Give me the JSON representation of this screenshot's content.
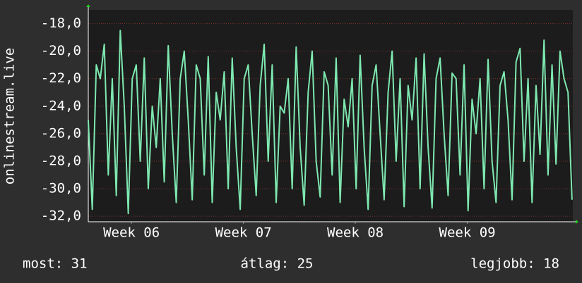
{
  "chart_data": {
    "type": "line",
    "y_label": "onlinestream.live",
    "x": [
      0,
      0.25,
      0.5,
      0.75,
      1,
      1.25,
      1.5,
      1.75,
      2,
      2.25,
      2.5,
      2.75,
      3,
      3.25,
      3.5,
      3.75,
      4,
      4.25,
      4.5,
      4.75,
      5,
      5.25,
      5.5,
      5.75,
      6,
      6.25,
      6.5,
      6.75,
      7,
      7.25,
      7.5,
      7.75,
      8,
      8.25,
      8.5,
      8.75,
      9,
      9.25,
      9.5,
      9.75,
      10,
      10.25,
      10.5,
      10.75,
      11,
      11.25,
      11.5,
      11.75,
      12,
      12.25,
      12.5,
      12.75,
      13,
      13.25,
      13.5,
      13.75,
      14,
      14.25,
      14.5,
      14.75,
      15,
      15.25,
      15.5,
      15.75,
      16,
      16.25,
      16.5,
      16.75,
      17,
      17.25,
      17.5,
      17.75,
      18,
      18.25,
      18.5,
      18.75,
      19,
      19.25,
      19.5,
      19.75,
      20,
      20.25,
      20.5,
      20.75,
      21,
      21.25,
      21.5,
      21.75,
      22,
      22.25,
      22.5,
      22.75,
      23,
      23.25,
      23.5,
      23.75,
      24,
      24.25,
      24.5,
      24.75,
      25,
      25.25,
      25.5,
      25.75,
      26,
      26.25,
      26.5,
      26.75,
      27,
      27.25,
      27.5,
      27.75,
      28,
      28.25,
      28.5,
      28.75,
      29,
      29.25,
      29.5,
      29.75,
      30,
      30.25
    ],
    "series": [
      {
        "name": "onlinestream.live",
        "color": "#7ee8b0",
        "values": [
          -25,
          -31.5,
          -21,
          -22,
          -19.5,
          -29,
          -22,
          -30.5,
          -18.5,
          -24,
          -31.8,
          -22,
          -21,
          -28,
          -20.5,
          -30,
          -24,
          -27,
          -22,
          -29.5,
          -19.6,
          -26,
          -31,
          -22,
          -20,
          -25,
          -30.8,
          -21,
          -22,
          -29,
          -20.4,
          -31,
          -23,
          -25,
          -21.5,
          -30,
          -20.5,
          -27,
          -31.5,
          -22,
          -21,
          -26,
          -30.5,
          -22.5,
          -19.5,
          -28,
          -21,
          -31,
          -24,
          -24.5,
          -22,
          -30,
          -19.7,
          -27,
          -31.2,
          -23,
          -20,
          -28,
          -30.6,
          -21.5,
          -22.5,
          -29,
          -20.5,
          -31,
          -23.5,
          -25.5,
          -22,
          -30,
          -20.3,
          -27,
          -31.5,
          -22.5,
          -21,
          -26,
          -30.8,
          -23,
          -20,
          -28,
          -22,
          -31.3,
          -22.5,
          -25,
          -20.5,
          -30,
          -20.2,
          -27,
          -31.4,
          -22,
          -20.5,
          -26,
          -30.5,
          -21.6,
          -22,
          -29,
          -21,
          -31.6,
          -23.5,
          -26,
          -22,
          -30,
          -20.6,
          -28,
          -31,
          -22.5,
          -21.5,
          -25,
          -30.8,
          -20.8,
          -19.8,
          -28,
          -22,
          -31,
          -22.5,
          -27.5,
          -19.2,
          -29,
          -21,
          -28.2,
          -20,
          -22,
          -23,
          -30.8
        ]
      }
    ],
    "xlim": [
      0,
      30.3
    ],
    "xticks": [
      {
        "value": 2.7,
        "label": "Week 06"
      },
      {
        "value": 9.7,
        "label": "Week 07"
      },
      {
        "value": 16.7,
        "label": "Week 08"
      },
      {
        "value": 23.7,
        "label": "Week 09"
      }
    ],
    "ylim": [
      -32.4,
      -17
    ],
    "yticks": [
      {
        "value": -32,
        "label": "-32,0"
      },
      {
        "value": -30,
        "label": "-30,0"
      },
      {
        "value": -28,
        "label": "-28,0"
      },
      {
        "value": -26,
        "label": "-26,0"
      },
      {
        "value": -24,
        "label": "-24,0"
      },
      {
        "value": -22,
        "label": "-22,0"
      },
      {
        "value": -20,
        "label": "-20,0"
      },
      {
        "value": -18,
        "label": "-18,0"
      }
    ],
    "grid": true,
    "footer": [
      "most: 31",
      "átlag: 25",
      "legjobb: 18"
    ]
  }
}
